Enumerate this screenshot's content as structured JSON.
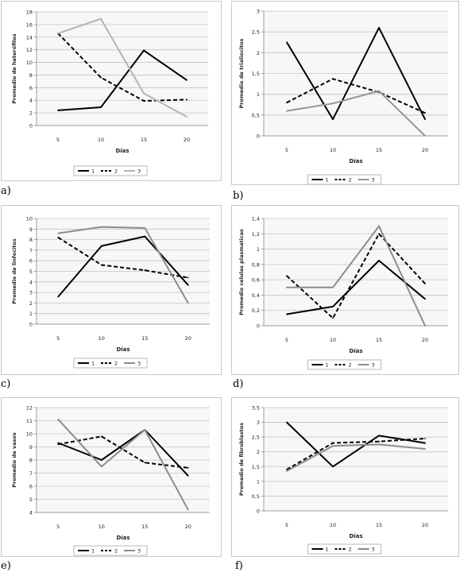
{
  "chart_data": [
    {
      "type": "line",
      "panel_label": "a)",
      "ylabel": "Promedio de heterófilos",
      "xlabel": "Días",
      "x": [
        5,
        10,
        15,
        20
      ],
      "xticks": [
        "5",
        "10",
        "15",
        "20"
      ],
      "ylim": [
        0,
        18
      ],
      "yticks": [
        "0",
        "2",
        "4",
        "6",
        "8",
        "10",
        "12",
        "14",
        "16",
        "18"
      ],
      "series": [
        {
          "name": "1",
          "values": [
            2.4,
            2.9,
            11.9,
            7.2
          ],
          "color": "#000000",
          "dash": "solid"
        },
        {
          "name": "2",
          "values": [
            14.6,
            7.6,
            3.9,
            4.1
          ],
          "color": "#000000",
          "dash": "dashed"
        },
        {
          "name": "3",
          "values": [
            14.6,
            16.9,
            5.1,
            1.4
          ],
          "color": "#b4b4b4",
          "dash": "solid"
        }
      ],
      "legend": "bottom",
      "grid": true
    },
    {
      "type": "line",
      "panel_label": "b)",
      "ylabel": "Promedio de trialiocitos",
      "xlabel": "Días",
      "x": [
        5,
        10,
        15,
        20
      ],
      "xticks": [
        "5",
        "10",
        "15",
        "20"
      ],
      "ylim": [
        0,
        3
      ],
      "yticks": [
        "0",
        "0,5",
        "1",
        "1,5",
        "2",
        "2,5",
        "3"
      ],
      "series": [
        {
          "name": "1",
          "values": [
            2.25,
            0.4,
            2.6,
            0.4
          ],
          "color": "#000000",
          "dash": "solid"
        },
        {
          "name": "2",
          "values": [
            0.8,
            1.37,
            1.05,
            0.55
          ],
          "color": "#000000",
          "dash": "dashed"
        },
        {
          "name": "3",
          "values": [
            0.6,
            0.78,
            1.08,
            0.0
          ],
          "color": "#969696",
          "dash": "solid"
        }
      ],
      "legend": "bottom",
      "grid": true
    },
    {
      "type": "line",
      "panel_label": "c)",
      "ylabel": "Promedio de linfocitos",
      "xlabel": "Días",
      "x": [
        5,
        10,
        15,
        20
      ],
      "xticks": [
        "5",
        "10",
        "15",
        "20"
      ],
      "ylim": [
        0,
        10
      ],
      "yticks": [
        "0",
        "1",
        "2",
        "3",
        "4",
        "5",
        "6",
        "7",
        "8",
        "9",
        "10"
      ],
      "series": [
        {
          "name": "1",
          "values": [
            2.6,
            7.4,
            8.3,
            3.7
          ],
          "color": "#000000",
          "dash": "solid"
        },
        {
          "name": "2",
          "values": [
            8.2,
            5.6,
            5.1,
            4.4
          ],
          "color": "#000000",
          "dash": "dashed"
        },
        {
          "name": "3",
          "values": [
            8.6,
            9.2,
            9.1,
            2.0
          ],
          "color": "#8c8c8c",
          "dash": "solid"
        }
      ],
      "legend": "bottom",
      "grid": true
    },
    {
      "type": "line",
      "panel_label": "d)",
      "ylabel": "Promedio celulas plasmaticas",
      "xlabel": "Días",
      "x": [
        5,
        10,
        15,
        20
      ],
      "xticks": [
        "5",
        "10",
        "15",
        "20"
      ],
      "ylim": [
        0,
        1.4
      ],
      "yticks": [
        "0",
        "0,2",
        "0,4",
        "0,6",
        "0,8",
        "1",
        "1,2",
        "1,4"
      ],
      "series": [
        {
          "name": "1",
          "values": [
            0.15,
            0.25,
            0.85,
            0.35
          ],
          "color": "#000000",
          "dash": "solid"
        },
        {
          "name": "2",
          "values": [
            0.65,
            0.1,
            1.2,
            0.55
          ],
          "color": "#000000",
          "dash": "dashed"
        },
        {
          "name": "3",
          "values": [
            0.5,
            0.5,
            1.3,
            0.0
          ],
          "color": "#8c8c8c",
          "dash": "solid"
        }
      ],
      "legend": "bottom",
      "grid": true
    },
    {
      "type": "line",
      "panel_label": "e)",
      "ylabel": "Promedio de vasos",
      "xlabel": "Días",
      "x": [
        5,
        10,
        15,
        20
      ],
      "xticks": [
        "5",
        "10",
        "15",
        "20"
      ],
      "ylim": [
        4,
        12
      ],
      "yticks": [
        "4",
        "5",
        "6",
        "7",
        "8",
        "9",
        "10",
        "11",
        "12"
      ],
      "series": [
        {
          "name": "1",
          "values": [
            9.3,
            8.0,
            10.3,
            6.8
          ],
          "color": "#000000",
          "dash": "solid"
        },
        {
          "name": "2",
          "values": [
            9.2,
            9.8,
            7.8,
            7.4
          ],
          "color": "#000000",
          "dash": "dashed"
        },
        {
          "name": "3",
          "values": [
            11.1,
            7.5,
            10.3,
            4.2
          ],
          "color": "#8c8c8c",
          "dash": "solid"
        }
      ],
      "legend": "bottom",
      "grid": true
    },
    {
      "type": "line",
      "panel_label": "f)",
      "ylabel": "Promedio de fibroblastos",
      "xlabel": "Días",
      "x": [
        5,
        10,
        15,
        20
      ],
      "xticks": [
        "5",
        "10",
        "15",
        "20"
      ],
      "ylim": [
        0,
        3.5
      ],
      "yticks": [
        "0",
        "0,5",
        "1",
        "1,5",
        "2",
        "2,5",
        "3",
        "3,5"
      ],
      "series": [
        {
          "name": "1",
          "values": [
            3.0,
            1.5,
            2.55,
            2.3
          ],
          "color": "#000000",
          "dash": "solid"
        },
        {
          "name": "2",
          "values": [
            1.4,
            2.3,
            2.35,
            2.45
          ],
          "color": "#000000",
          "dash": "dashed"
        },
        {
          "name": "3",
          "values": [
            1.35,
            2.2,
            2.25,
            2.1
          ],
          "color": "#8c8c8c",
          "dash": "solid"
        }
      ],
      "legend": "bottom",
      "grid": true
    }
  ]
}
